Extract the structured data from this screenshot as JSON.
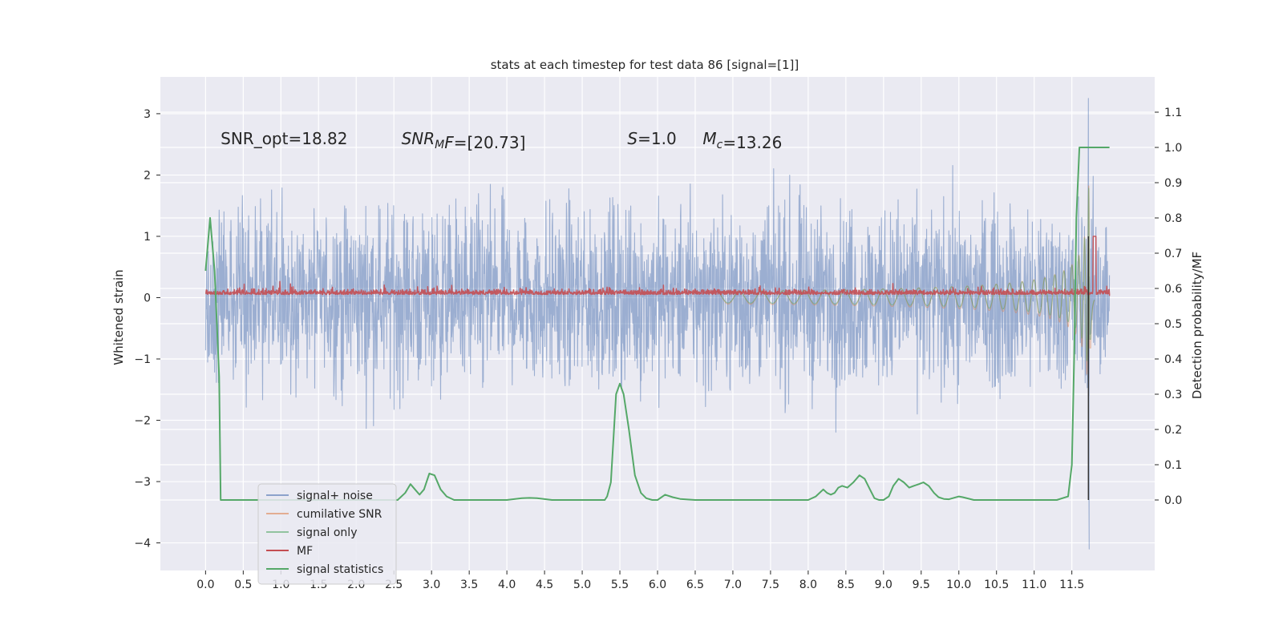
{
  "chart_data": {
    "type": "line",
    "title": "stats at each timestep for test data 86 [signal=[1]]",
    "xlabel": "",
    "ylabel": "Whitened strain",
    "ylabel_right": "Detection probability/MF",
    "xlim": [
      -0.6,
      12.6
    ],
    "ylim": [
      -4.45,
      3.6
    ],
    "ylim_right": [
      -0.2,
      1.2
    ],
    "x_ticks": [
      0.0,
      0.5,
      1.0,
      1.5,
      2.0,
      2.5,
      3.0,
      3.5,
      4.0,
      4.5,
      5.0,
      5.5,
      6.0,
      6.5,
      7.0,
      7.5,
      8.0,
      8.5,
      9.0,
      9.5,
      10.0,
      10.5,
      11.0,
      11.5
    ],
    "x_tick_labels": [
      "0.0",
      "0.5",
      "1.0",
      "1.5",
      "2.0",
      "2.5",
      "3.0",
      "3.5",
      "4.0",
      "4.5",
      "5.0",
      "5.5",
      "6.0",
      "6.5",
      "7.0",
      "7.5",
      "8.0",
      "8.5",
      "9.0",
      "9.5",
      "10.0",
      "10.5",
      "11.0",
      "11.5"
    ],
    "y_ticks": [
      -4,
      -3,
      -2,
      -1,
      0,
      1,
      2,
      3
    ],
    "y_tick_labels": [
      "−4",
      "−3",
      "−2",
      "−1",
      "0",
      "1",
      "2",
      "3"
    ],
    "y_ticks_right": [
      0.0,
      0.1,
      0.2,
      0.3,
      0.4,
      0.5,
      0.6,
      0.7,
      0.8,
      0.9,
      1.0,
      1.1
    ],
    "y_tick_labels_right": [
      "0.0",
      "0.1",
      "0.2",
      "0.3",
      "0.4",
      "0.5",
      "0.6",
      "0.7",
      "0.8",
      "0.9",
      "1.0",
      "1.1"
    ],
    "grid": true,
    "legend_placement": "lower-left",
    "annotations": [
      {
        "x": 0.2,
        "y": 2.5,
        "parts": [
          {
            "t": "SNR_opt=18.82"
          }
        ]
      },
      {
        "x": 2.6,
        "y": 2.5,
        "parts": [
          {
            "t": "SNR",
            "i": true
          },
          {
            "t": "M",
            "i": true,
            "sub": true
          },
          {
            "t": "F",
            "i": true
          },
          {
            "t": "=[20.73]"
          }
        ]
      },
      {
        "x": 5.6,
        "y": 2.5,
        "parts": [
          {
            "t": "S",
            "i": true
          },
          {
            "t": "=1.0"
          }
        ]
      },
      {
        "x": 6.6,
        "y": 2.5,
        "parts": [
          {
            "t": "M",
            "i": true
          },
          {
            "t": "c",
            "i": true,
            "sub": true
          },
          {
            "t": "=13.26"
          }
        ]
      }
    ],
    "series": [
      {
        "name": "signal+ noise",
        "color": "#4c72b0",
        "axis": "left",
        "style": "noise",
        "x_range": [
          0.0,
          12.0
        ],
        "amplitude_range": [
          -4.1,
          3.25
        ]
      },
      {
        "name": "cumilative SNR",
        "color": "#dd8452",
        "axis": "left",
        "style": "chirp",
        "x_range": [
          6.8,
          11.8
        ],
        "amplitude_range": [
          -2.3,
          2.35
        ]
      },
      {
        "name": "signal only",
        "color": "#55a868",
        "axis": "left",
        "style": "chirp",
        "x_range": [
          6.8,
          11.8
        ],
        "amplitude_range": [
          -1.9,
          2.3
        ]
      },
      {
        "name": "MF",
        "color": "#c44e52",
        "axis": "left",
        "style": "mf",
        "x_range": [
          0.0,
          12.0
        ],
        "amplitude_range": [
          0.03,
          1.0
        ]
      },
      {
        "name": "signal statistics",
        "color": "#55a868",
        "axis": "right",
        "style": "line",
        "x": [
          0.0,
          0.06,
          0.12,
          0.18,
          0.2,
          0.3,
          0.6,
          1.0,
          1.5,
          2.0,
          2.4,
          2.55,
          2.65,
          2.72,
          2.78,
          2.84,
          2.9,
          2.97,
          3.04,
          3.12,
          3.2,
          3.3,
          3.5,
          3.8,
          4.0,
          4.2,
          4.3,
          4.4,
          4.6,
          5.0,
          5.3,
          5.33,
          5.38,
          5.45,
          5.5,
          5.55,
          5.62,
          5.7,
          5.78,
          5.85,
          5.93,
          6.0,
          6.1,
          6.2,
          6.3,
          6.5,
          7.0,
          7.5,
          8.0,
          8.1,
          8.2,
          8.25,
          8.3,
          8.35,
          8.4,
          8.45,
          8.52,
          8.6,
          8.68,
          8.75,
          8.82,
          8.88,
          8.94,
          9.0,
          9.07,
          9.13,
          9.2,
          9.27,
          9.34,
          9.4,
          9.47,
          9.53,
          9.6,
          9.67,
          9.73,
          9.8,
          9.87,
          10.0,
          10.05,
          10.2,
          10.4,
          10.6,
          10.8,
          11.0,
          11.3,
          11.45,
          11.5,
          11.53,
          11.56,
          11.6,
          11.65,
          11.75,
          11.8,
          12.0
        ],
        "y": [
          0.65,
          0.8,
          0.65,
          0.35,
          0.0,
          0.0,
          0.0,
          0.0,
          0.0,
          0.0,
          0.0,
          0.0,
          0.02,
          0.045,
          0.03,
          0.015,
          0.03,
          0.075,
          0.07,
          0.03,
          0.01,
          0.0,
          0.0,
          0.0,
          0.0,
          0.005,
          0.006,
          0.005,
          0.0,
          0.0,
          0.0,
          0.01,
          0.05,
          0.3,
          0.33,
          0.3,
          0.2,
          0.07,
          0.02,
          0.005,
          0.0,
          0.0,
          0.015,
          0.008,
          0.003,
          0.0,
          0.0,
          0.0,
          0.0,
          0.01,
          0.03,
          0.02,
          0.015,
          0.02,
          0.035,
          0.04,
          0.035,
          0.05,
          0.07,
          0.06,
          0.03,
          0.005,
          0.0,
          0.0,
          0.01,
          0.04,
          0.06,
          0.05,
          0.035,
          0.04,
          0.045,
          0.05,
          0.04,
          0.02,
          0.008,
          0.003,
          0.002,
          0.01,
          0.008,
          0.0,
          0.0,
          0.0,
          0.0,
          0.0,
          0.0,
          0.01,
          0.1,
          0.4,
          0.8,
          1.0,
          1.0,
          1.0,
          1.0,
          1.0
        ]
      }
    ]
  }
}
